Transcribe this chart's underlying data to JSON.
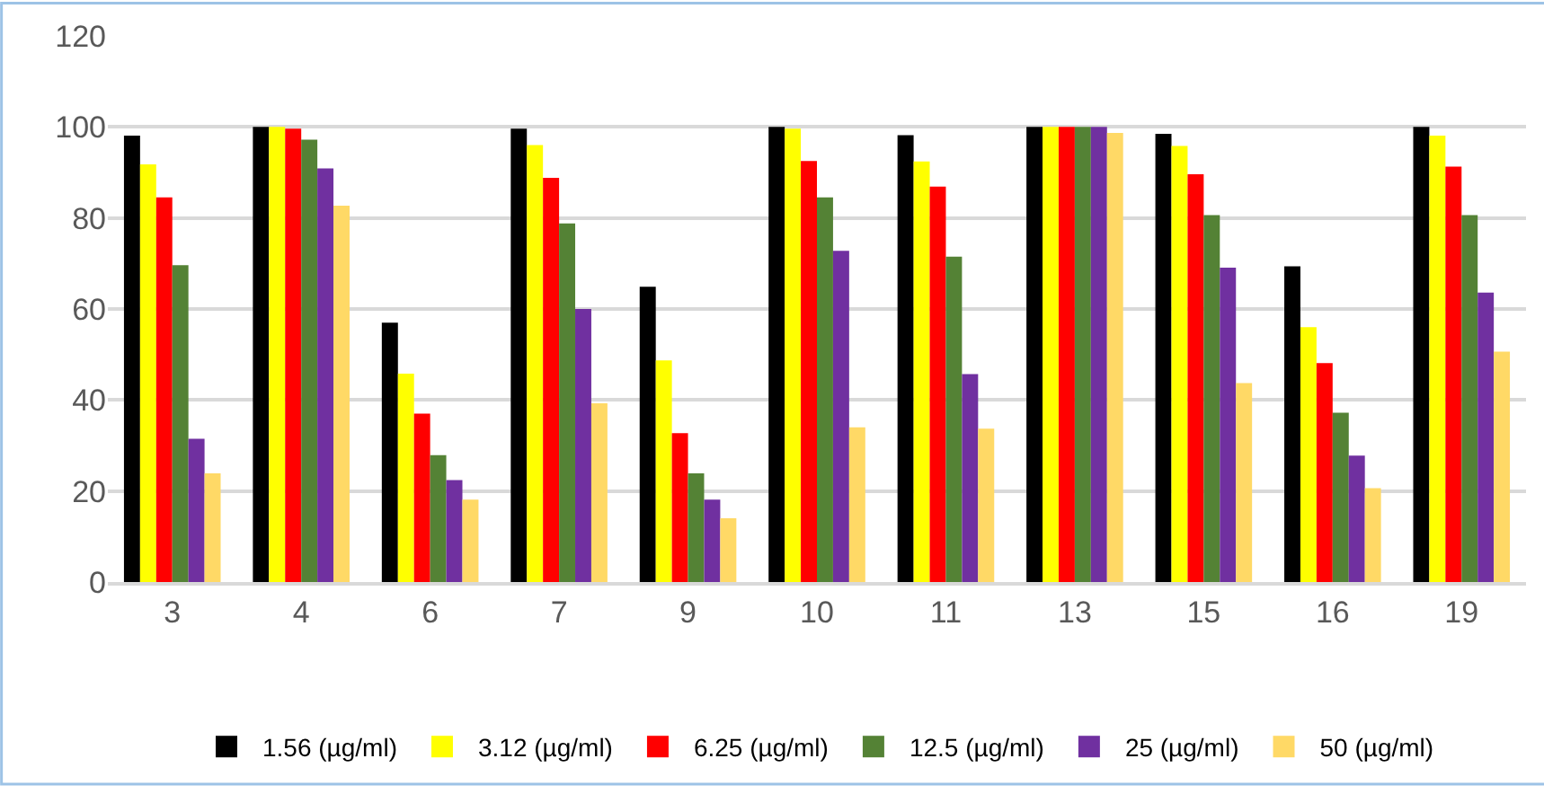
{
  "chart_data": {
    "type": "bar",
    "categories": [
      "3",
      "4",
      "6",
      "7",
      "9",
      "10",
      "11",
      "13",
      "15",
      "16",
      "19"
    ],
    "series": [
      {
        "name": "1.56 (µg/ml)",
        "color": "#000000",
        "values": [
          98.1,
          100,
          57.0,
          99.6,
          64.9,
          100,
          98.2,
          100,
          98.5,
          69.4,
          100
        ]
      },
      {
        "name": "3.12 (µg/ml)",
        "color": "#ffff00",
        "values": [
          91.8,
          100,
          45.8,
          96.0,
          48.7,
          99.6,
          92.4,
          100,
          95.8,
          56.0,
          98.1
        ]
      },
      {
        "name": "6.25 (µg/ml)",
        "color": "#ff0000",
        "values": [
          84.5,
          99.6,
          37.0,
          88.8,
          32.7,
          92.5,
          86.9,
          100,
          89.6,
          48.1,
          91.3
        ]
      },
      {
        "name": "12.5 (µg/ml)",
        "color": "#548235",
        "values": [
          69.6,
          97.2,
          27.9,
          78.8,
          23.9,
          84.5,
          71.5,
          100,
          80.6,
          37.2,
          80.6
        ]
      },
      {
        "name": "25 (µg/ml)",
        "color": "#7030a0",
        "values": [
          31.5,
          90.9,
          22.4,
          60.0,
          18.1,
          72.8,
          45.7,
          100,
          69.1,
          27.8,
          63.6
        ]
      },
      {
        "name": "50 (µg/ml)",
        "color": "#ffd966",
        "values": [
          23.9,
          82.7,
          18.1,
          39.3,
          14.0,
          34.0,
          33.7,
          98.7,
          43.7,
          20.6,
          50.6
        ]
      }
    ],
    "ylim": [
      0,
      120
    ],
    "yticks": [
      0,
      20,
      40,
      60,
      80,
      100,
      120
    ],
    "grid": "y",
    "legend": "bottom"
  }
}
